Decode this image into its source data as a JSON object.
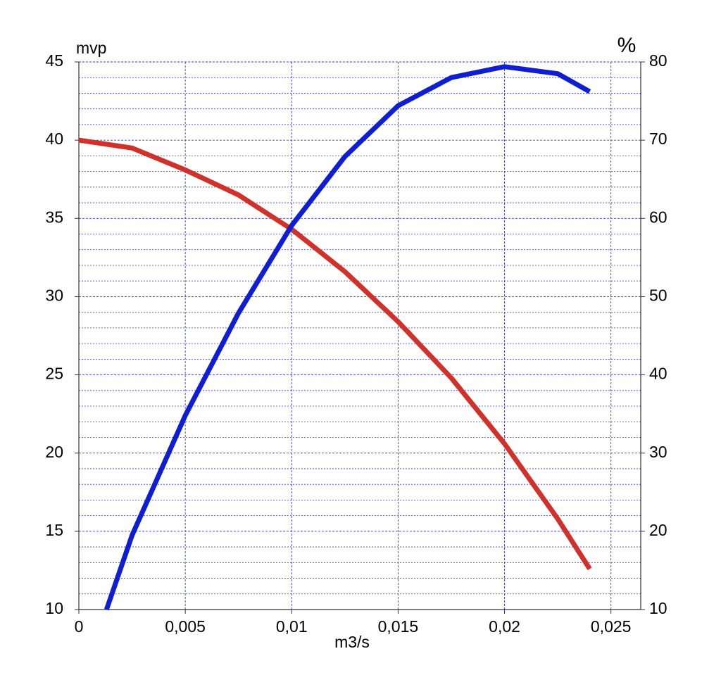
{
  "chart_data": {
    "type": "line",
    "y_label": "mvp",
    "y2_label": "%",
    "x_label": "m3/s",
    "xlim": [
      0,
      0.0264
    ],
    "xticks": [
      0,
      {
        "value": 0.005,
        "label": "0,005"
      },
      {
        "value": 0.01,
        "label": "0,01"
      },
      {
        "value": 0.015,
        "label": "0,015"
      },
      {
        "value": 0.02,
        "label": "0,02"
      },
      {
        "value": 0.025,
        "label": "0,025"
      }
    ],
    "ylim": [
      10,
      45
    ],
    "yticks": [
      10,
      15,
      20,
      25,
      30,
      35,
      40,
      45
    ],
    "y_minor_ticks": [
      11,
      12,
      13,
      14,
      16,
      17,
      18,
      19,
      21,
      22,
      23,
      24,
      26,
      27,
      28,
      29,
      31,
      32,
      33,
      34,
      36,
      37,
      38,
      39,
      41,
      42,
      43,
      44
    ],
    "y2lim": [
      10,
      80
    ],
    "y2ticks": [
      10,
      20,
      30,
      40,
      50,
      60,
      70,
      80
    ],
    "grid": true,
    "grid_color": "#3a3ad8",
    "series": [
      {
        "color": "#d0312a",
        "axis": "y",
        "x": [
          0,
          0.0025,
          0.005,
          0.0075,
          0.01,
          0.0125,
          0.015,
          0.0175,
          0.02,
          0.0225,
          0.024
        ],
        "values": [
          40,
          39.5,
          38.1,
          36.5,
          34.3,
          31.6,
          28.4,
          24.8,
          20.6,
          15.8,
          12.6
        ]
      },
      {
        "color": "#0f1ed0",
        "axis": "y2",
        "x": [
          0.0013,
          0.0025,
          0.005,
          0.0075,
          0.01,
          0.0125,
          0.015,
          0.0175,
          0.02,
          0.0225,
          0.024
        ],
        "values": [
          10,
          19.5,
          34.8,
          47.9,
          59.1,
          67.9,
          74.4,
          78,
          79.4,
          78.5,
          76.2
        ]
      }
    ]
  }
}
